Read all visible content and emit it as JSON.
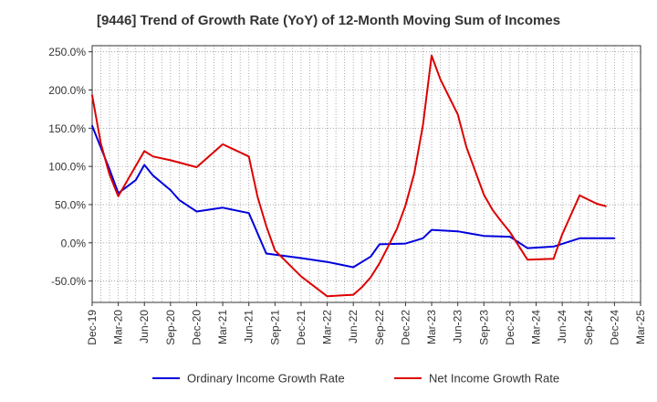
{
  "chart_data": {
    "type": "line",
    "title": "[9446]  Trend of Growth Rate (YoY) of 12-Month Moving Sum of Incomes",
    "xlabel": "",
    "ylabel": "",
    "x_tick_labels": [
      "Dec-19",
      "Mar-20",
      "Jun-20",
      "Sep-20",
      "Dec-20",
      "Mar-21",
      "Jun-21",
      "Sep-21",
      "Dec-21",
      "Mar-22",
      "Jun-22",
      "Sep-22",
      "Dec-22",
      "Mar-23",
      "Jun-23",
      "Sep-23",
      "Dec-23",
      "Mar-24",
      "Jun-24",
      "Sep-24",
      "Dec-24",
      "Mar-25"
    ],
    "y_tick_labels": [
      "-50.0%",
      "0.0%",
      "50.0%",
      "100.0%",
      "150.0%",
      "200.0%",
      "250.0%"
    ],
    "y_ticks": [
      -50,
      0,
      50,
      100,
      150,
      200,
      250
    ],
    "ylim": [
      -78,
      258
    ],
    "xlim": [
      0,
      63
    ],
    "grid": true,
    "legend_position": "bottom",
    "series": [
      {
        "name": "Ordinary Income Growth Rate",
        "color": "#0000dd",
        "points": [
          [
            0,
            153
          ],
          [
            2,
            96
          ],
          [
            3,
            65
          ],
          [
            5,
            82
          ],
          [
            6,
            102
          ],
          [
            7,
            88
          ],
          [
            9,
            69
          ],
          [
            10,
            56
          ],
          [
            12,
            41
          ],
          [
            15,
            46
          ],
          [
            18,
            39
          ],
          [
            20,
            -14
          ],
          [
            24,
            -20
          ],
          [
            27,
            -25
          ],
          [
            30,
            -32
          ],
          [
            32,
            -18
          ],
          [
            33,
            -2
          ],
          [
            36,
            -1
          ],
          [
            38,
            6
          ],
          [
            39,
            17
          ],
          [
            42,
            15
          ],
          [
            45,
            9
          ],
          [
            48,
            8
          ],
          [
            50,
            -7
          ],
          [
            53,
            -5
          ],
          [
            56,
            6
          ],
          [
            60,
            6
          ]
        ]
      },
      {
        "name": "Net Income Growth Rate",
        "color": "#dd0000",
        "points": [
          [
            0,
            193
          ],
          [
            1,
            130
          ],
          [
            2,
            89
          ],
          [
            3,
            61
          ],
          [
            6,
            120
          ],
          [
            7,
            113
          ],
          [
            9,
            108
          ],
          [
            12,
            99
          ],
          [
            15,
            129
          ],
          [
            18,
            113
          ],
          [
            19,
            60
          ],
          [
            20,
            22
          ],
          [
            21,
            -10
          ],
          [
            24,
            -44
          ],
          [
            27,
            -70
          ],
          [
            30,
            -68
          ],
          [
            31,
            -58
          ],
          [
            32,
            -45
          ],
          [
            33,
            -27
          ],
          [
            34,
            -5
          ],
          [
            35,
            18
          ],
          [
            36,
            49
          ],
          [
            37,
            91
          ],
          [
            38,
            154
          ],
          [
            39,
            245
          ],
          [
            40,
            214
          ],
          [
            42,
            168
          ],
          [
            43,
            125
          ],
          [
            45,
            63
          ],
          [
            46,
            43
          ],
          [
            47,
            28
          ],
          [
            48,
            14
          ],
          [
            50,
            -22
          ],
          [
            53,
            -21
          ],
          [
            54,
            11
          ],
          [
            56,
            62
          ],
          [
            58,
            51
          ],
          [
            59,
            48
          ]
        ]
      }
    ]
  }
}
